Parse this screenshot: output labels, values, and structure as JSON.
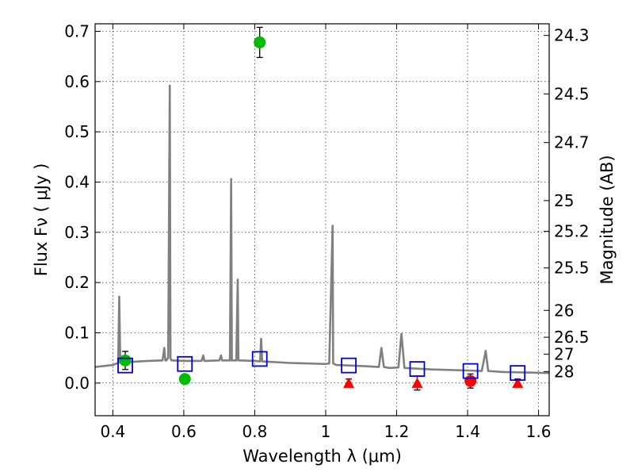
{
  "chart_data": {
    "type": "scatter",
    "title": "",
    "xlabel": "Wavelength  λ (μm)",
    "ylabel": "Flux  Fν  ( μJy )",
    "y2label": "Magnitude (AB)",
    "xlim": [
      0.35,
      1.63
    ],
    "ylim": [
      -0.065,
      0.715
    ],
    "grid": true,
    "x_ticks": [
      0.4,
      0.6,
      0.8,
      1.0,
      1.2,
      1.4,
      1.6
    ],
    "x_tick_labels": [
      "0.4",
      "0.6",
      "0.8",
      "1",
      "1.2",
      "1.4",
      "1.6"
    ],
    "y_ticks": [
      0.0,
      0.1,
      0.2,
      0.3,
      0.4,
      0.5,
      0.6,
      0.7
    ],
    "y_tick_labels": [
      "0.0",
      "0.1",
      "0.2",
      "0.3",
      "0.4",
      "0.5",
      "0.6",
      "0.7"
    ],
    "y2_ticks": [
      {
        "label": "24.3",
        "mag": 24.3
      },
      {
        "label": "24.5",
        "mag": 24.5
      },
      {
        "label": "24.7",
        "mag": 24.7
      },
      {
        "label": "25",
        "mag": 25.0
      },
      {
        "label": "25.2",
        "mag": 25.2
      },
      {
        "label": "25.5",
        "mag": 25.5
      },
      {
        "label": "26",
        "mag": 26.0
      },
      {
        "label": "26.5",
        "mag": 26.5
      },
      {
        "label": "27",
        "mag": 27.0
      },
      {
        "label": "28",
        "mag": 28.0
      }
    ],
    "model_spectrum": {
      "color": "#808080",
      "x": [
        0.35,
        0.4,
        0.415,
        0.418,
        0.421,
        0.424,
        0.45,
        0.5,
        0.54,
        0.545,
        0.548,
        0.551,
        0.556,
        0.5605,
        0.5625,
        0.565,
        0.568,
        0.6,
        0.65,
        0.655,
        0.658,
        0.661,
        0.7,
        0.705,
        0.708,
        0.711,
        0.73,
        0.7335,
        0.7355,
        0.738,
        0.748,
        0.752,
        0.754,
        0.757,
        0.8,
        0.815,
        0.818,
        0.821,
        0.9,
        0.95,
        1.0,
        1.01,
        1.0195,
        1.021,
        1.024,
        1.03,
        1.1,
        1.15,
        1.157,
        1.164,
        1.18,
        1.205,
        1.2135,
        1.222,
        1.3,
        1.4,
        1.44,
        1.451,
        1.458,
        1.5,
        1.63
      ],
      "y": [
        0.032,
        0.036,
        0.04,
        0.172,
        0.04,
        0.04,
        0.042,
        0.044,
        0.045,
        0.07,
        0.045,
        0.045,
        0.05,
        0.592,
        0.05,
        0.045,
        0.045,
        0.044,
        0.044,
        0.055,
        0.044,
        0.044,
        0.045,
        0.055,
        0.045,
        0.045,
        0.045,
        0.406,
        0.045,
        0.045,
        0.045,
        0.206,
        0.045,
        0.045,
        0.044,
        0.043,
        0.088,
        0.043,
        0.04,
        0.039,
        0.038,
        0.039,
        0.313,
        0.039,
        0.038,
        0.036,
        0.034,
        0.032,
        0.07,
        0.032,
        0.03,
        0.031,
        0.098,
        0.03,
        0.027,
        0.025,
        0.024,
        0.064,
        0.024,
        0.022,
        0.02
      ]
    },
    "series": [
      {
        "marker": "circle",
        "color": "#00bb00",
        "points": [
          {
            "x": 0.435,
            "y": 0.045,
            "err": 0.018
          },
          {
            "x": 0.603,
            "y": 0.008,
            "err": 0.008
          },
          {
            "x": 0.814,
            "y": 0.678,
            "err": 0.03
          }
        ]
      },
      {
        "marker": "triangle",
        "color": "#ff0000",
        "points": [
          {
            "x": 1.065,
            "y": 0.0,
            "err": 0.008
          },
          {
            "x": 1.258,
            "y": 0.0,
            "err": 0.014
          },
          {
            "x": 1.541,
            "y": 0.0,
            "err": 0.008
          }
        ]
      },
      {
        "marker": "circle",
        "color": "#ff0000",
        "points": [
          {
            "x": 1.408,
            "y": 0.004,
            "err": 0.014
          }
        ]
      },
      {
        "marker": "square-open",
        "color": "#0000dd",
        "points": [
          {
            "x": 0.435,
            "y": 0.035
          },
          {
            "x": 0.603,
            "y": 0.038
          },
          {
            "x": 0.814,
            "y": 0.048
          },
          {
            "x": 1.065,
            "y": 0.035
          },
          {
            "x": 1.258,
            "y": 0.028
          },
          {
            "x": 1.408,
            "y": 0.024
          },
          {
            "x": 1.541,
            "y": 0.02
          }
        ]
      }
    ]
  }
}
